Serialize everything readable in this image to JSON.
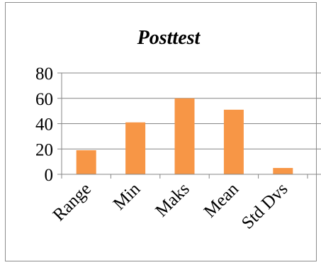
{
  "chart_data": {
    "type": "bar",
    "title": "Posttest",
    "categories": [
      "Range",
      "Min",
      "Maks",
      "Mean",
      "Std Dvs"
    ],
    "values": [
      19,
      41,
      60,
      51,
      5
    ],
    "ylim": [
      0,
      80
    ],
    "yticks": [
      "0",
      "20",
      "40",
      "60",
      "80"
    ],
    "grid": true,
    "legend": "none",
    "colors": {
      "bar": "#f79646",
      "grid": "#868686",
      "axis": "#868686"
    }
  }
}
